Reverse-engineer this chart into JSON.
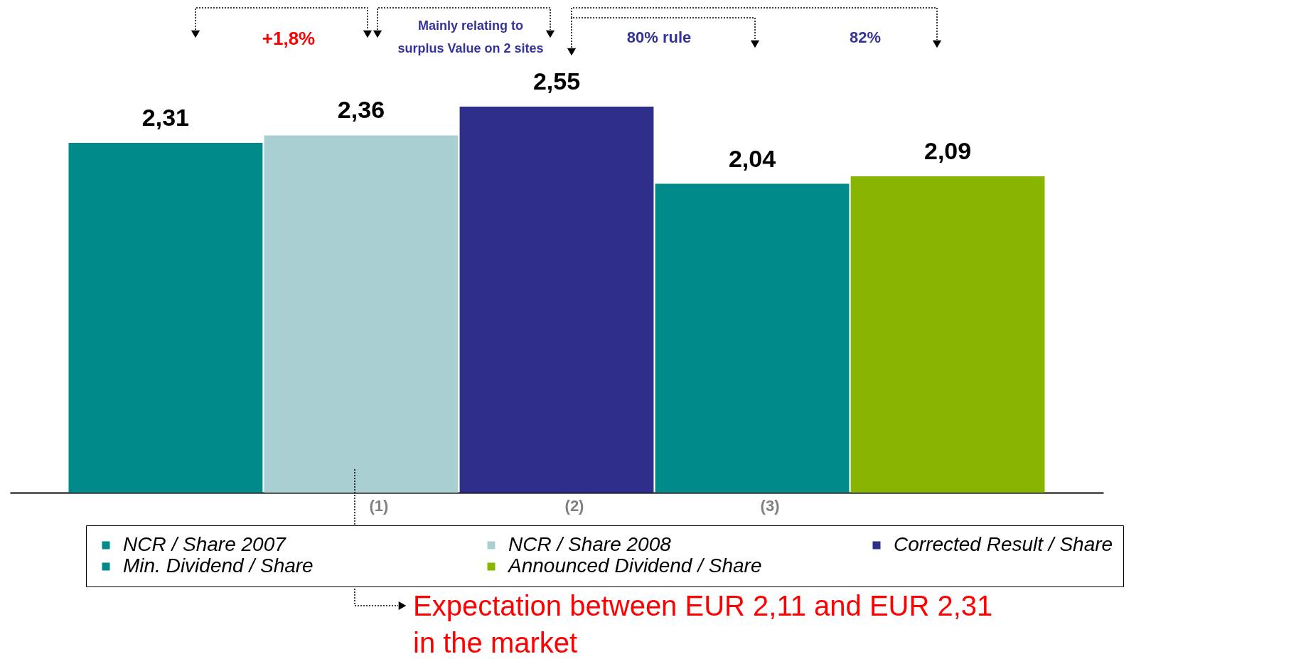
{
  "chart_data": {
    "type": "bar",
    "categories": [
      null,
      "(1)",
      "(2)",
      "(3)",
      null
    ],
    "stacked": true,
    "legend": "bottom",
    "series": [
      {
        "name": "NCR / Share 2007",
        "color": "#008b8a",
        "values": [
          2.31,
          null,
          null,
          null,
          null
        ],
        "value_labels": [
          "2,31",
          null,
          null,
          null,
          null
        ]
      },
      {
        "name": "NCR / Share 2008",
        "color": "#a9cfd2",
        "values": [
          null,
          2.36,
          null,
          null,
          null
        ],
        "value_labels": [
          null,
          "2,36",
          null,
          null,
          null
        ]
      },
      {
        "name": "Corrected Result / Share",
        "color": "#2e2f8a",
        "values": [
          null,
          null,
          2.55,
          null,
          null
        ],
        "value_labels": [
          null,
          null,
          "2,55",
          null,
          null
        ]
      },
      {
        "name": "Min. Dividend / Share",
        "color": "#008b8a",
        "values": [
          null,
          null,
          null,
          2.04,
          null
        ],
        "value_labels": [
          null,
          null,
          null,
          "2,04",
          null
        ]
      },
      {
        "name": "Announced Dividend / Share",
        "color": "#88b600",
        "values": [
          null,
          null,
          null,
          null,
          2.09
        ],
        "value_labels": [
          null,
          null,
          null,
          null,
          "2,09"
        ]
      }
    ],
    "annotations": [
      "+1,8%",
      "Mainly relating to surplus Value on 2 sites",
      "80% rule",
      "82%",
      "Expectation between EUR 2,11 and EUR 2,31 in the market"
    ]
  }
}
